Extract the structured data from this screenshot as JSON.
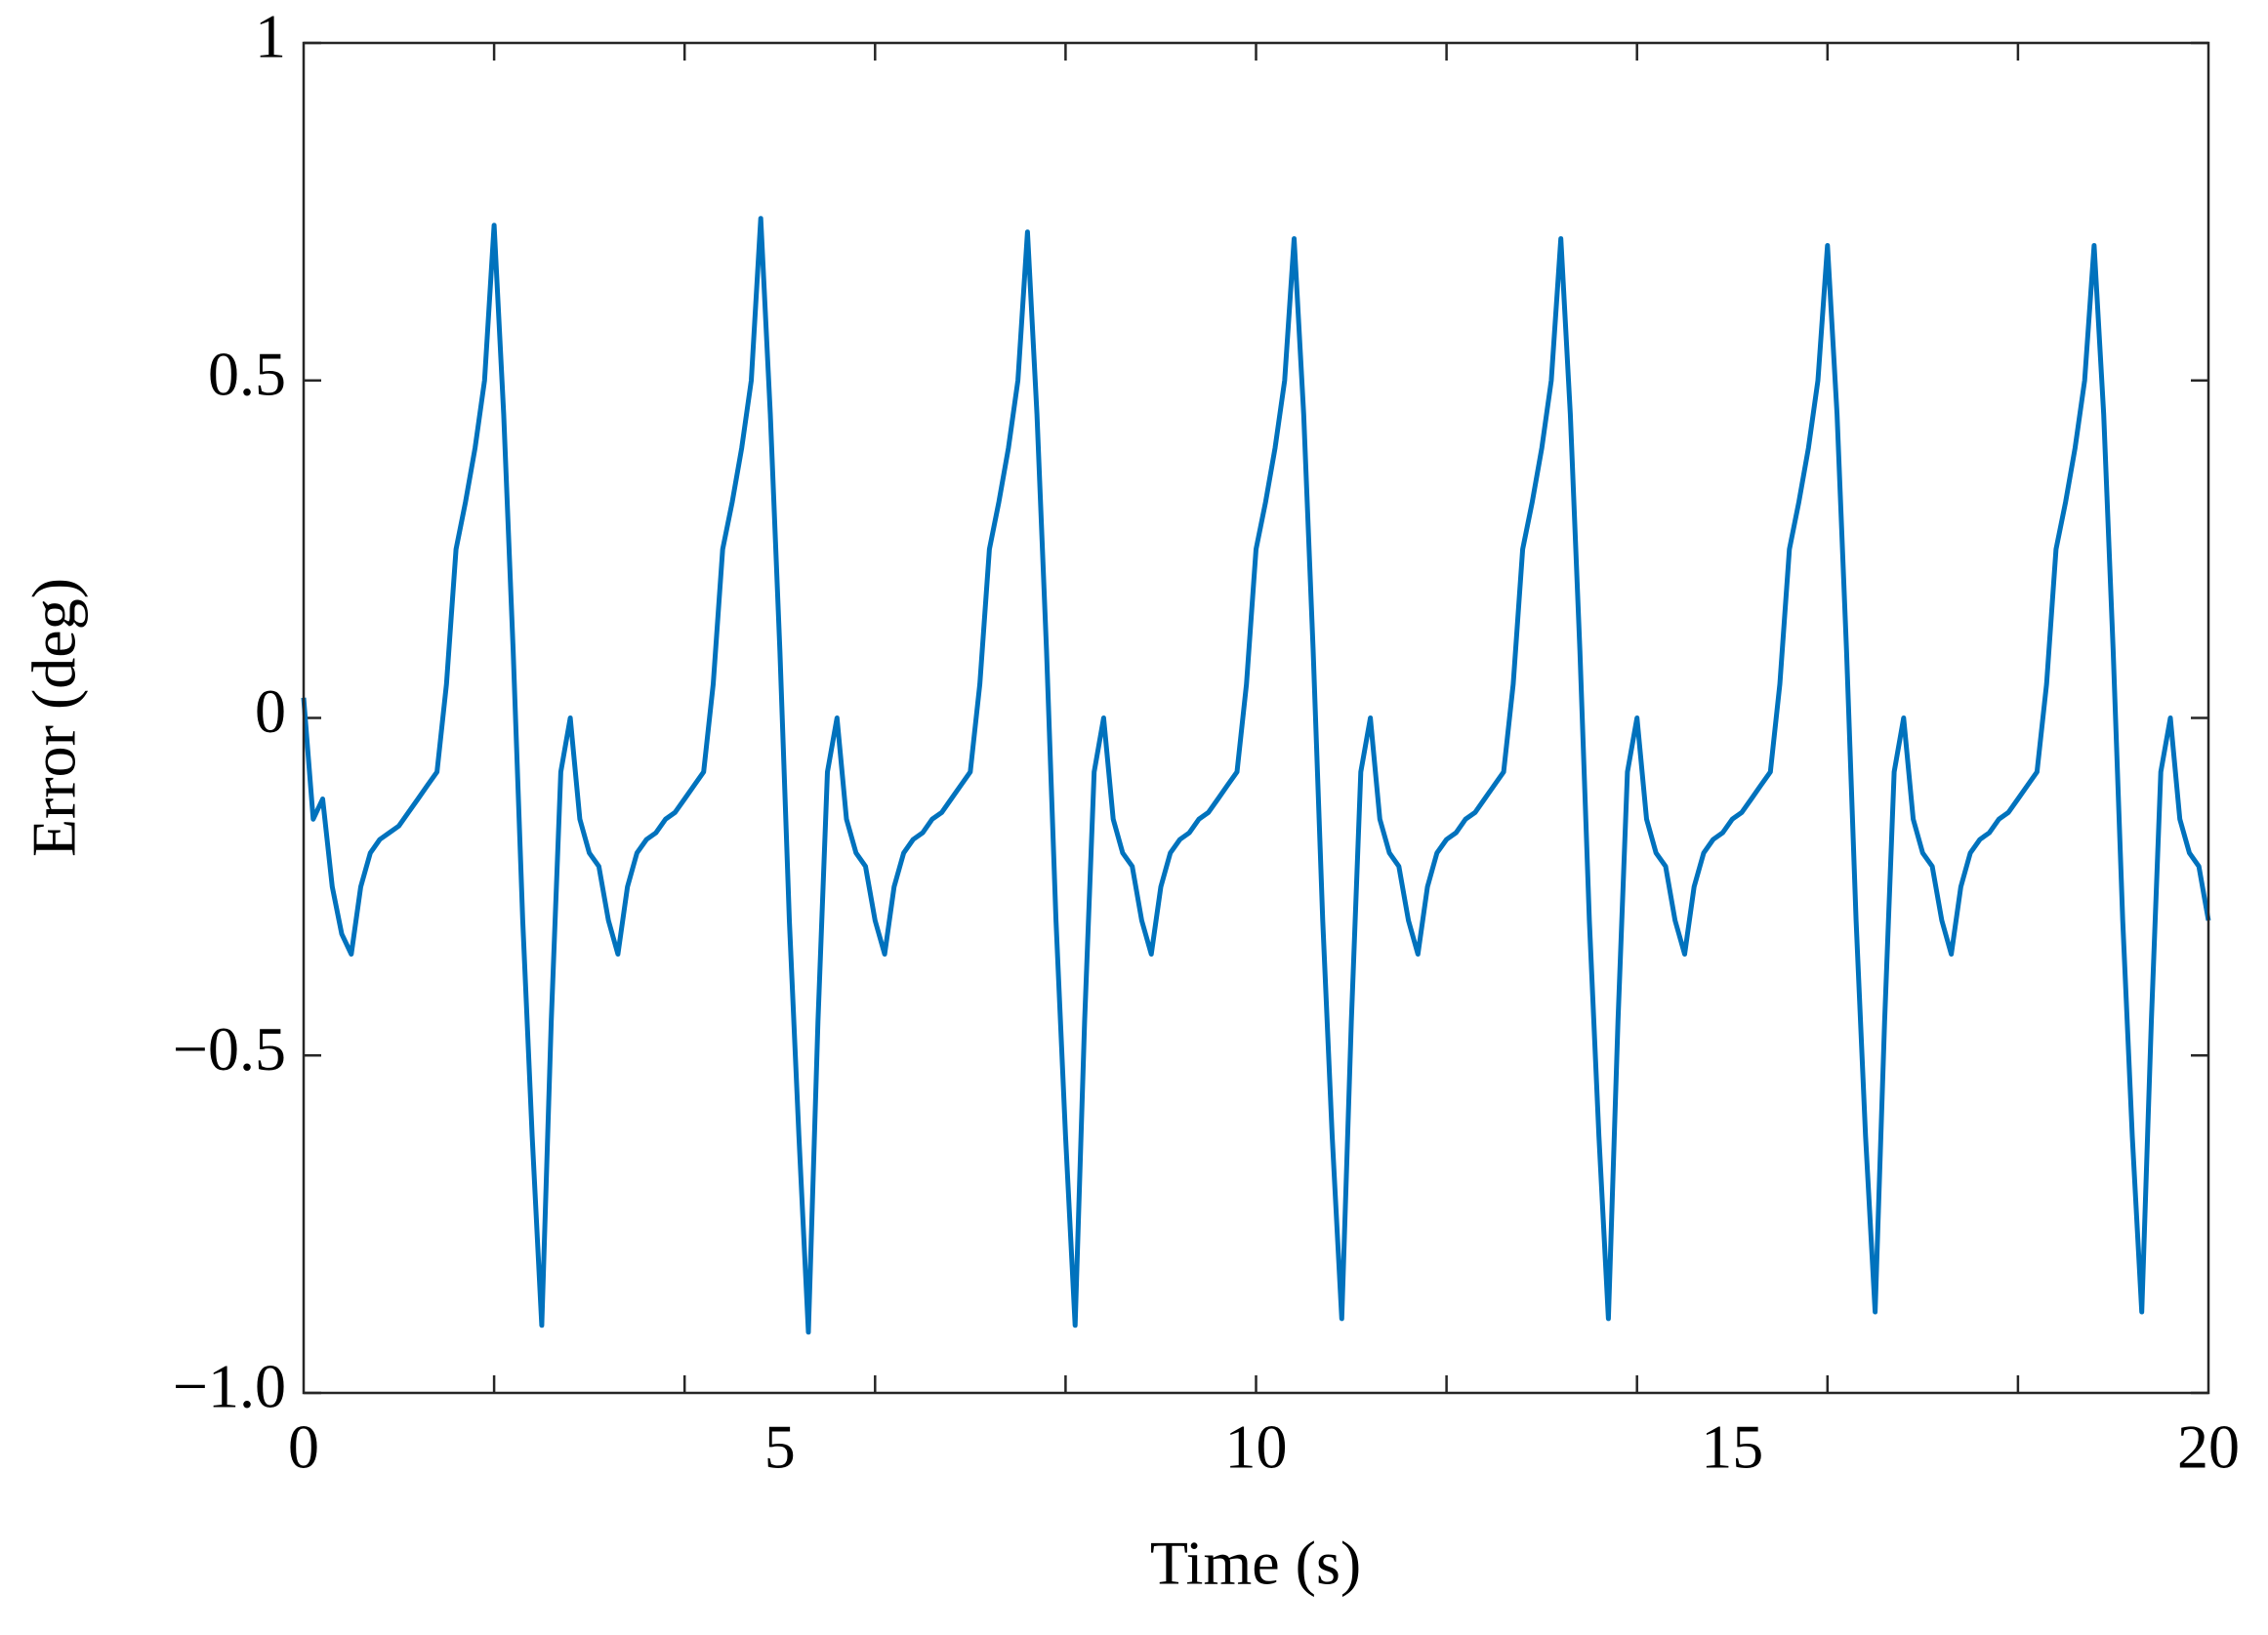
{
  "chart_data": {
    "type": "line",
    "xlabel": "Time (s)",
    "ylabel": "Error (deg)",
    "color": "#0072bd",
    "xlim": [
      0,
      20
    ],
    "xticks": [
      0,
      5,
      10,
      15,
      20
    ],
    "xminorticks": [
      2,
      4,
      6,
      8,
      10,
      12,
      14,
      16,
      18
    ],
    "ylim": [
      -1,
      1
    ],
    "yticks": [
      {
        "value": -1,
        "label": "−1.0"
      },
      {
        "value": -0.5,
        "label": "−0.5"
      },
      0,
      0.5,
      1
    ],
    "x": [
      0,
      0.1,
      0.2,
      0.3,
      0.4,
      0.5,
      0.6,
      0.7,
      0.8,
      0.9,
      1,
      1.1,
      1.2,
      1.3,
      1.4,
      1.5,
      1.6,
      1.7,
      1.8,
      1.9,
      2,
      2.1,
      2.2,
      2.3,
      2.4,
      2.5,
      2.6,
      2.7,
      2.8,
      2.9,
      3,
      3.1,
      3.2,
      3.3,
      3.4,
      3.5,
      3.6,
      3.7,
      3.8,
      3.9,
      4,
      4.1,
      4.2,
      4.3,
      4.4,
      4.5,
      4.6,
      4.7,
      4.8,
      4.9,
      5,
      5.1,
      5.2,
      5.3,
      5.4,
      5.5,
      5.6,
      5.7,
      5.8,
      5.9,
      6,
      6.1,
      6.2,
      6.3,
      6.4,
      6.5,
      6.6,
      6.7,
      6.8,
      6.9,
      7,
      7.1,
      7.2,
      7.3,
      7.4,
      7.5,
      7.6,
      7.7,
      7.8,
      7.9,
      8,
      8.1,
      8.2,
      8.3,
      8.4,
      8.5,
      8.6,
      8.7,
      8.8,
      8.9,
      9,
      9.1,
      9.2,
      9.3,
      9.4,
      9.5,
      9.6,
      9.7,
      9.8,
      9.9,
      10,
      10.1,
      10.2,
      10.3,
      10.4,
      10.5,
      10.6,
      10.7,
      10.8,
      10.9,
      11,
      11.1,
      11.2,
      11.3,
      11.4,
      11.5,
      11.6,
      11.7,
      11.8,
      11.9,
      12,
      12.1,
      12.2,
      12.3,
      12.4,
      12.5,
      12.6,
      12.7,
      12.8,
      12.9,
      13,
      13.1,
      13.2,
      13.3,
      13.4,
      13.5,
      13.6,
      13.7,
      13.8,
      13.9,
      14,
      14.1,
      14.2,
      14.3,
      14.4,
      14.5,
      14.6,
      14.7,
      14.8,
      14.9,
      15,
      15.1,
      15.2,
      15.3,
      15.4,
      15.5,
      15.6,
      15.7,
      15.8,
      15.9,
      16,
      16.1,
      16.2,
      16.3,
      16.4,
      16.5,
      16.6,
      16.7,
      16.8,
      16.9,
      17,
      17.1,
      17.2,
      17.3,
      17.4,
      17.5,
      17.6,
      17.7,
      17.8,
      17.9,
      18,
      18.1,
      18.2,
      18.3,
      18.4,
      18.5,
      18.6,
      18.7,
      18.8,
      18.9,
      19,
      19.1,
      19.2,
      19.3,
      19.4,
      19.5,
      19.6,
      19.7,
      19.8,
      19.9,
      20
    ],
    "values": [
      0.03,
      -0.15,
      -0.12,
      -0.25,
      -0.32,
      -0.35,
      -0.25,
      -0.2,
      -0.18,
      -0.17,
      -0.16,
      -0.14,
      -0.12,
      -0.1,
      -0.08,
      0.05,
      0.25,
      0.32,
      0.4,
      0.5,
      0.73,
      0.45,
      0.1,
      -0.3,
      -0.62,
      -0.9,
      -0.45,
      -0.08,
      0.0,
      -0.15,
      -0.2,
      -0.22,
      -0.3,
      -0.35,
      -0.25,
      -0.2,
      -0.18,
      -0.17,
      -0.15,
      -0.14,
      -0.12,
      -0.1,
      -0.08,
      0.05,
      0.25,
      0.32,
      0.4,
      0.5,
      0.74,
      0.45,
      0.1,
      -0.3,
      -0.62,
      -0.91,
      -0.45,
      -0.08,
      0.0,
      -0.15,
      -0.2,
      -0.22,
      -0.3,
      -0.35,
      -0.25,
      -0.2,
      -0.18,
      -0.17,
      -0.15,
      -0.14,
      -0.12,
      -0.1,
      -0.08,
      0.05,
      0.25,
      0.32,
      0.4,
      0.5,
      0.72,
      0.45,
      0.1,
      -0.3,
      -0.62,
      -0.9,
      -0.45,
      -0.08,
      0.0,
      -0.15,
      -0.2,
      -0.22,
      -0.3,
      -0.35,
      -0.25,
      -0.2,
      -0.18,
      -0.17,
      -0.15,
      -0.14,
      -0.12,
      -0.1,
      -0.08,
      0.05,
      0.25,
      0.32,
      0.4,
      0.5,
      0.71,
      0.45,
      0.1,
      -0.3,
      -0.62,
      -0.89,
      -0.45,
      -0.08,
      0.0,
      -0.15,
      -0.2,
      -0.22,
      -0.3,
      -0.35,
      -0.25,
      -0.2,
      -0.18,
      -0.17,
      -0.15,
      -0.14,
      -0.12,
      -0.1,
      -0.08,
      0.05,
      0.25,
      0.32,
      0.4,
      0.5,
      0.71,
      0.45,
      0.1,
      -0.3,
      -0.62,
      -0.89,
      -0.45,
      -0.08,
      0.0,
      -0.15,
      -0.2,
      -0.22,
      -0.3,
      -0.35,
      -0.25,
      -0.2,
      -0.18,
      -0.17,
      -0.15,
      -0.14,
      -0.12,
      -0.1,
      -0.08,
      0.05,
      0.25,
      0.32,
      0.4,
      0.5,
      0.7,
      0.45,
      0.1,
      -0.3,
      -0.62,
      -0.88,
      -0.45,
      -0.08,
      0.0,
      -0.15,
      -0.2,
      -0.22,
      -0.3,
      -0.35,
      -0.25,
      -0.2,
      -0.18,
      -0.17,
      -0.15,
      -0.14,
      -0.12,
      -0.1,
      -0.08,
      0.05,
      0.25,
      0.32,
      0.4,
      0.5,
      0.7,
      0.45,
      0.1,
      -0.3,
      -0.62,
      -0.88,
      -0.45,
      -0.08,
      0.0,
      -0.15,
      -0.2,
      -0.22,
      -0.3
    ]
  }
}
